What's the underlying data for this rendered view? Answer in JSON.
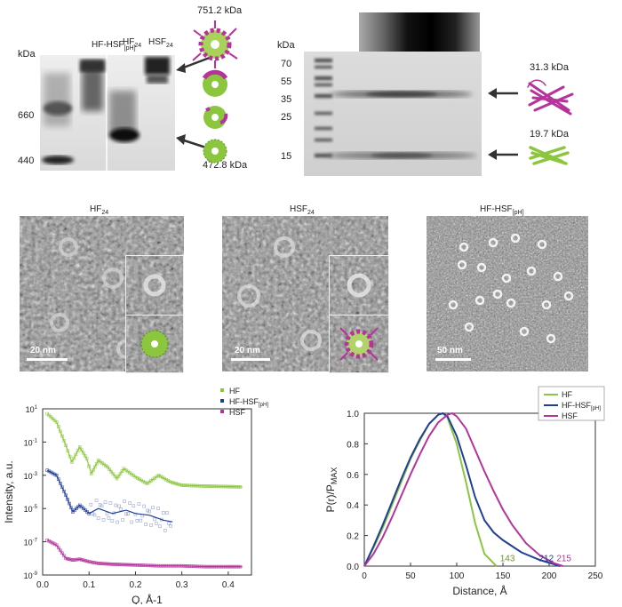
{
  "gel_native": {
    "kda_header": "kDa",
    "markers": [
      "660",
      "440"
    ],
    "lanes": [
      "HF-HSF",
      "[pH]",
      "HF",
      "24",
      "HSF",
      "24"
    ],
    "top_mass": "751.2 kDa",
    "bottom_mass": "472.8 kDa"
  },
  "gel_sds": {
    "kda_header": "kDa",
    "markers": [
      "70",
      "55",
      "35",
      "25",
      "15"
    ],
    "upper_mass": "31.3 kDa",
    "lower_mass": "19.7 kDa"
  },
  "tem": [
    {
      "title": "HF",
      "title_sub": "24",
      "scale": "20 nm"
    },
    {
      "title": "HSF",
      "title_sub": "24",
      "scale": "20 nm"
    },
    {
      "title": "HF-HSF",
      "title_sub": "[pH]",
      "scale": "50 nm"
    }
  ],
  "colors": {
    "hf": "#8cc63f",
    "mix": "#1f3f99",
    "hsf": "#b5339b"
  },
  "chart_data": [
    {
      "type": "scatter",
      "xlabel": "Q, Å-1",
      "ylabel": "Intensity, a.u.",
      "xlim": [
        0.0,
        0.45
      ],
      "ylim_log10": [
        -9,
        1
      ],
      "x_ticks": [
        "0.0",
        "0.1",
        "0.2",
        "0.3",
        "0.4"
      ],
      "y_ticks": [
        {
          "base": "10",
          "exp": "1"
        },
        {
          "base": "10",
          "exp": "-1"
        },
        {
          "base": "10",
          "exp": "-3"
        },
        {
          "base": "10",
          "exp": "-5"
        },
        {
          "base": "10",
          "exp": "-7"
        },
        {
          "base": "10",
          "exp": "-9"
        }
      ],
      "legend": "top-right",
      "series": [
        {
          "name": "HF",
          "name_sub": "",
          "color": "#8cc63f",
          "x": [
            0.01,
            0.03,
            0.05,
            0.063,
            0.08,
            0.095,
            0.105,
            0.12,
            0.14,
            0.16,
            0.175,
            0.2,
            0.225,
            0.25,
            0.275,
            0.3,
            0.35,
            0.43
          ],
          "log10_y": [
            0.7,
            0.2,
            -1.2,
            -2.2,
            -1.3,
            -2.0,
            -2.9,
            -2.1,
            -2.5,
            -3.2,
            -2.6,
            -3.1,
            -3.5,
            -3.0,
            -3.4,
            -3.6,
            -3.65,
            -3.7
          ]
        },
        {
          "name": "HF-HSF",
          "name_sub": "[pH]",
          "color": "#1f3f99",
          "x": [
            0.01,
            0.03,
            0.05,
            0.065,
            0.08,
            0.1,
            0.12,
            0.15,
            0.18,
            0.2,
            0.23,
            0.26,
            0.28
          ],
          "log10_y": [
            -2.7,
            -3.0,
            -4.2,
            -5.2,
            -4.8,
            -5.3,
            -5.0,
            -5.3,
            -5.1,
            -5.3,
            -5.4,
            -5.7,
            -5.8
          ]
        },
        {
          "name": "HSF",
          "name_sub": "",
          "color": "#b5339b",
          "x": [
            0.01,
            0.03,
            0.05,
            0.065,
            0.08,
            0.1,
            0.12,
            0.15,
            0.2,
            0.25,
            0.3,
            0.35,
            0.43
          ],
          "log10_y": [
            -6.9,
            -7.2,
            -8.0,
            -8.1,
            -8.05,
            -8.2,
            -8.3,
            -8.35,
            -8.4,
            -8.45,
            -8.45,
            -8.5,
            -8.5
          ]
        }
      ]
    },
    {
      "type": "line",
      "xlabel": "Distance, Å",
      "ylabel": "P(r)/P",
      "ylabel_sub": "MAX",
      "xlim": [
        0,
        250
      ],
      "ylim": [
        0.0,
        1.0
      ],
      "x_ticks": [
        "0",
        "50",
        "100",
        "150",
        "200",
        "250"
      ],
      "y_ticks": [
        "0.0",
        "0.2",
        "0.4",
        "0.6",
        "0.8",
        "1.0"
      ],
      "legend": "top-right",
      "annotations": [
        "143",
        "212",
        "215"
      ],
      "series": [
        {
          "name": "HF",
          "name_sub": "",
          "color": "#8cc63f",
          "x": [
            0,
            10,
            20,
            30,
            40,
            50,
            60,
            70,
            80,
            85,
            90,
            100,
            110,
            120,
            130,
            143
          ],
          "y": [
            0,
            0.12,
            0.25,
            0.4,
            0.55,
            0.7,
            0.82,
            0.93,
            0.99,
            1.0,
            0.97,
            0.8,
            0.55,
            0.28,
            0.08,
            0.0
          ]
        },
        {
          "name": "HF-HSF",
          "name_sub": "[pH]",
          "color": "#1f3f99",
          "x": [
            0,
            10,
            20,
            30,
            40,
            50,
            60,
            70,
            80,
            85,
            90,
            100,
            110,
            120,
            130,
            140,
            150,
            170,
            190,
            212
          ],
          "y": [
            0,
            0.13,
            0.27,
            0.42,
            0.57,
            0.71,
            0.83,
            0.93,
            0.99,
            1.0,
            0.98,
            0.85,
            0.66,
            0.45,
            0.3,
            0.22,
            0.17,
            0.09,
            0.04,
            0.0
          ]
        },
        {
          "name": "HSF",
          "name_sub": "",
          "color": "#b5339b",
          "x": [
            0,
            10,
            20,
            30,
            40,
            50,
            60,
            70,
            80,
            90,
            95,
            100,
            110,
            120,
            130,
            140,
            150,
            160,
            175,
            190,
            205,
            215
          ],
          "y": [
            0,
            0.08,
            0.19,
            0.32,
            0.46,
            0.6,
            0.73,
            0.85,
            0.94,
            0.99,
            1.0,
            0.98,
            0.9,
            0.76,
            0.62,
            0.49,
            0.37,
            0.27,
            0.15,
            0.07,
            0.02,
            0.0
          ]
        }
      ]
    }
  ]
}
